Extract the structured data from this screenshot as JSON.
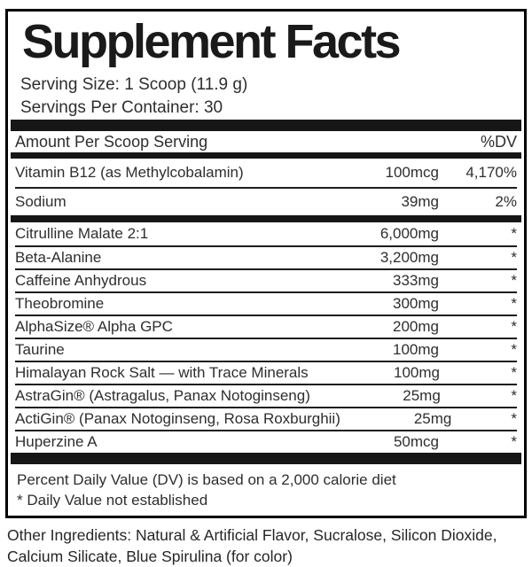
{
  "title": "Supplement Facts",
  "serving": {
    "size": "Serving Size: 1 Scoop (11.9 g)",
    "per_container": "Servings Per Container: 30"
  },
  "header": {
    "amount_label": "Amount Per Scoop Serving",
    "dv_label": "%DV"
  },
  "daily_rows": [
    {
      "name": "Vitamin B12 (as Methylcobalamin)",
      "amount": "100mcg",
      "dv": "4,170%"
    },
    {
      "name": "Sodium",
      "amount": "39mg",
      "dv": "2%"
    }
  ],
  "blend_rows": [
    {
      "name": "Citrulline Malate 2:1",
      "amount": "6,000mg",
      "dv": "*"
    },
    {
      "name": "Beta-Alanine",
      "amount": "3,200mg",
      "dv": "*"
    },
    {
      "name": "Caffeine Anhydrous",
      "amount": "333mg",
      "dv": "*"
    },
    {
      "name": "Theobromine",
      "amount": "300mg",
      "dv": "*"
    },
    {
      "name": "AlphaSize® Alpha GPC",
      "amount": "200mg",
      "dv": "*"
    },
    {
      "name": "Taurine",
      "amount": "100mg",
      "dv": "*"
    },
    {
      "name": "Himalayan Rock Salt — with Trace Minerals",
      "amount": "100mg",
      "dv": "*"
    },
    {
      "name": "AstraGin® (Astragalus, Panax Notoginseng)",
      "amount": "25mg",
      "dv": "*"
    },
    {
      "name": "ActiGin® (Panax Notoginseng, Rosa Roxburghii)",
      "amount": "25mg",
      "dv": "*"
    },
    {
      "name": "Huperzine A",
      "amount": "50mcg",
      "dv": "*"
    }
  ],
  "footnotes": {
    "dv_basis": "Percent Daily Value (DV) is based on a 2,000 calorie diet",
    "asterisk": "* Daily Value not established"
  },
  "other_ingredients": "Other Ingredients: Natural & Artificial Flavor, Sucralose, Silicon Dioxide, Calcium Silicate, Blue Spirulina (for color)",
  "colors": {
    "background": "#ffffff",
    "text": "#2e2e2e",
    "bars": "#161616",
    "border": "#000000"
  }
}
